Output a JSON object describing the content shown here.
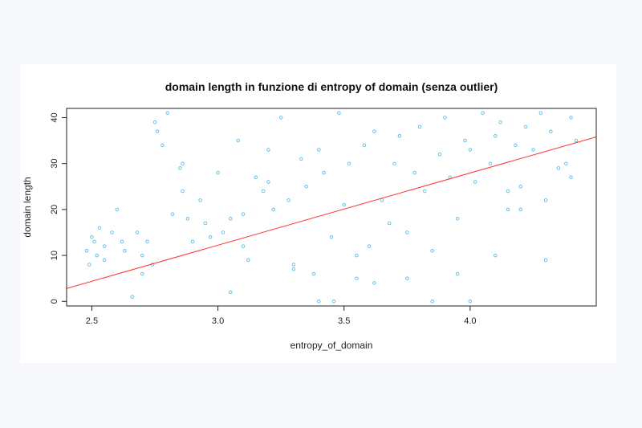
{
  "chart_data": {
    "type": "scatter",
    "title": "domain length in funzione di entropy of domain (senza outlier)",
    "xlabel": "entropy_of_domain",
    "ylabel": "domain length",
    "xlim": [
      2.4,
      4.5
    ],
    "ylim": [
      -1,
      42
    ],
    "xticks": [
      "2.5",
      "3.0",
      "3.5",
      "4.0"
    ],
    "yticks": [
      "0",
      "10",
      "20",
      "30",
      "40"
    ],
    "point_color": "#5bbde8",
    "regression_line": {
      "color": "#ff3333",
      "x": [
        2.4,
        4.5
      ],
      "y": [
        2.8,
        35.8
      ]
    },
    "grid": false,
    "legend": "none",
    "series": [
      {
        "x": [
          2.48,
          2.49,
          2.5,
          2.51,
          2.52,
          2.53,
          2.55,
          2.55,
          2.58,
          2.6,
          2.62,
          2.63,
          2.66,
          2.68,
          2.7,
          2.72,
          2.75,
          2.76,
          2.78,
          2.8,
          2.82,
          2.85,
          2.86,
          2.88,
          2.9,
          2.93,
          2.95,
          2.97,
          3.0,
          3.02,
          3.05,
          3.08,
          3.1,
          3.12,
          3.15,
          3.18,
          3.2,
          3.22,
          3.25,
          3.28,
          3.3,
          3.33,
          3.35,
          3.38,
          3.4,
          3.42,
          3.45,
          3.48,
          3.5,
          3.52,
          3.55,
          3.58,
          3.6,
          3.62,
          3.65,
          3.68,
          3.7,
          3.72,
          3.75,
          3.78,
          3.8,
          3.82,
          3.85,
          3.88,
          3.9,
          3.92,
          3.95,
          3.98,
          4.0,
          4.02,
          4.05,
          4.08,
          4.1,
          4.12,
          4.15,
          4.18,
          4.2,
          4.22,
          4.25,
          4.28,
          4.3,
          4.32,
          4.35,
          4.38,
          4.4,
          4.42,
          2.7,
          2.74,
          2.86,
          3.05,
          3.2,
          3.4,
          3.46,
          3.62,
          3.85,
          4.0,
          4.1,
          4.2,
          4.3,
          4.4,
          3.1,
          3.3,
          3.55,
          3.75,
          3.95,
          4.15
        ],
        "y": [
          11,
          8,
          14,
          13,
          10,
          16,
          9,
          12,
          15,
          20,
          13,
          11,
          1,
          15,
          6,
          13,
          39,
          37,
          34,
          41,
          19,
          29,
          24,
          18,
          13,
          22,
          17,
          14,
          28,
          15,
          18,
          35,
          19,
          9,
          27,
          24,
          26,
          20,
          40,
          22,
          8,
          31,
          25,
          6,
          33,
          28,
          14,
          41,
          21,
          30,
          10,
          34,
          12,
          37,
          22,
          17,
          30,
          36,
          5,
          28,
          38,
          24,
          11,
          32,
          40,
          27,
          6,
          35,
          33,
          26,
          41,
          30,
          36,
          39,
          20,
          34,
          25,
          38,
          33,
          41,
          22,
          37,
          29,
          30,
          40,
          35,
          10,
          8,
          30,
          2,
          33,
          0,
          0,
          4,
          0,
          0,
          10,
          20,
          9,
          27,
          12,
          7,
          5,
          15,
          18,
          24
        ]
      }
    ]
  }
}
